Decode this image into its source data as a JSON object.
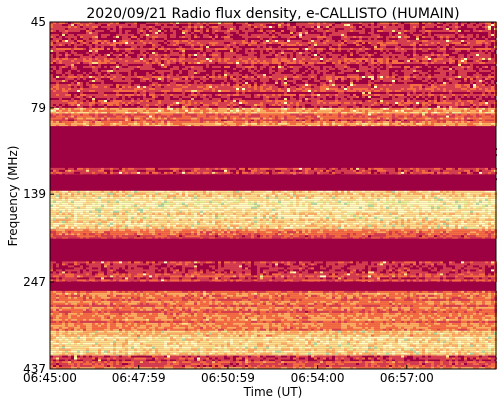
{
  "chart_data": {
    "type": "heatmap",
    "title": "2020/09/21  Radio flux density, e-CALLISTO (HUMAIN)",
    "xlabel": "Time (UT)",
    "ylabel": "Frequency (MHz)",
    "x_ticks": [
      "06:45:00",
      "06:47:59",
      "06:50:59",
      "06:54:00",
      "06:57:00"
    ],
    "x_tick_seconds": [
      0,
      179,
      359,
      540,
      720
    ],
    "x_range_seconds": [
      0,
      900
    ],
    "y_ticks": [
      "45",
      "79",
      "139",
      "247",
      "437"
    ],
    "y_scale": "log",
    "y_range_mhz": [
      45,
      437
    ],
    "colormap": [
      "#9e0142",
      "#d53e4f",
      "#f46d43",
      "#fdae61",
      "#fee08b",
      "#ffffbf",
      "#e6f598",
      "#abdda4"
    ],
    "bands": [
      {
        "f_top": 45,
        "f_bottom": 79,
        "level": 0.16,
        "note": "noisy with bright speckles"
      },
      {
        "f_top": 79,
        "f_bottom": 82,
        "level": 0.45
      },
      {
        "f_top": 82,
        "f_bottom": 86,
        "level": 0.25
      },
      {
        "f_top": 86,
        "f_bottom": 89,
        "level": 0.4
      },
      {
        "f_top": 89,
        "f_bottom": 117,
        "level": 0.0,
        "note": "saturated low band"
      },
      {
        "f_top": 117,
        "f_bottom": 122,
        "level": 0.2
      },
      {
        "f_top": 122,
        "f_bottom": 136,
        "level": 0.0
      },
      {
        "f_top": 136,
        "f_bottom": 175,
        "level": 0.62,
        "note": "bright bursts / RFI"
      },
      {
        "f_top": 175,
        "f_bottom": 186,
        "level": 0.3
      },
      {
        "f_top": 186,
        "f_bottom": 216,
        "level": 0.0
      },
      {
        "f_top": 216,
        "f_bottom": 247,
        "level": 0.22
      },
      {
        "f_top": 247,
        "f_bottom": 262,
        "level": 0.0
      },
      {
        "f_top": 262,
        "f_bottom": 340,
        "level": 0.32
      },
      {
        "f_top": 340,
        "f_bottom": 400,
        "level": 0.55,
        "note": "bright vertical streaks"
      },
      {
        "f_top": 400,
        "f_bottom": 415,
        "level": 0.12
      },
      {
        "f_top": 415,
        "f_bottom": 437,
        "level": 0.3
      }
    ]
  }
}
